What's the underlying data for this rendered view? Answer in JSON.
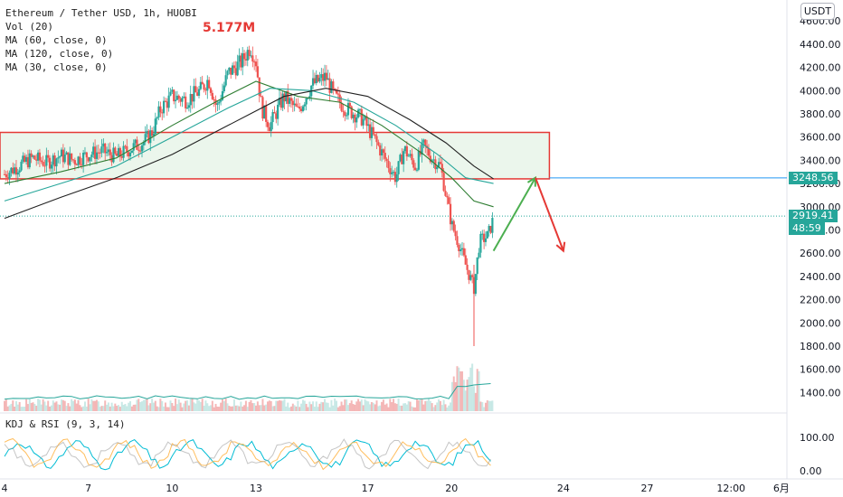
{
  "header": {
    "symbol_line": "Ethereum / Tether USD, 1h, HUOBI",
    "volume_value": "5.177M",
    "indicators": [
      "Vol (20)",
      "MA (60, close, 0)",
      "MA (120, close, 0)",
      "MA (30, close, 0)"
    ],
    "lower_indicator": "KDJ & RSI (9, 3, 14)",
    "currency_badge": "USDT"
  },
  "price_tags": {
    "level": "3248.56",
    "current": "2919.41",
    "countdown": "48:59"
  },
  "colors": {
    "zone_fill": "#e8f5e9",
    "zone_border": "#e53935",
    "level_line": "#2196f3",
    "level_tag": "#26a69a",
    "current_tag": "#26a69a",
    "up_arrow": "#4caf50",
    "down_arrow": "#e53935",
    "candle_up": "#26a69a",
    "candle_down": "#ef5350",
    "ma30": "#2e7d32",
    "ma60": "#26a69a",
    "ma120": "#212121"
  },
  "chart_data": {
    "type": "candlestick",
    "y_axis": {
      "ticks": [
        1400,
        1600,
        1800,
        2000,
        2200,
        2400,
        2600,
        2800,
        3000,
        3200,
        3400,
        3600,
        3800,
        4000,
        4200,
        4400,
        4600
      ],
      "tick_labels": [
        "1400.00",
        "1600.00",
        "1800.00",
        "2000.00",
        "2200.00",
        "2400.00",
        "2600.00",
        "2800.00",
        "3000.00",
        "3200.00",
        "3400.00",
        "3600.00",
        "3800.00",
        "4000.00",
        "4200.00",
        "4400.00",
        "4600.00"
      ],
      "range": [
        1240,
        4780
      ]
    },
    "x_axis": {
      "tick_labels": [
        "4",
        "7",
        "10",
        "13",
        "17",
        "20",
        "24",
        "27",
        "12:00",
        "6月"
      ],
      "range_days": [
        4,
        32
      ]
    },
    "price_path": [
      [
        4.0,
        3280
      ],
      [
        4.5,
        3350
      ],
      [
        5.0,
        3420
      ],
      [
        5.5,
        3380
      ],
      [
        6.0,
        3440
      ],
      [
        6.5,
        3400
      ],
      [
        7.0,
        3450
      ],
      [
        7.5,
        3480
      ],
      [
        8.0,
        3430
      ],
      [
        8.5,
        3500
      ],
      [
        9.0,
        3560
      ],
      [
        9.3,
        3650
      ],
      [
        9.6,
        3850
      ],
      [
        10.0,
        3950
      ],
      [
        10.5,
        3920
      ],
      [
        11.0,
        4000
      ],
      [
        11.3,
        4100
      ],
      [
        11.6,
        3850
      ],
      [
        12.0,
        4150
      ],
      [
        12.5,
        4250
      ],
      [
        12.8,
        4380
      ],
      [
        13.0,
        4250
      ],
      [
        13.2,
        3850
      ],
      [
        13.5,
        3700
      ],
      [
        14.0,
        3950
      ],
      [
        14.5,
        3820
      ],
      [
        15.0,
        4050
      ],
      [
        15.5,
        4120
      ],
      [
        15.8,
        3950
      ],
      [
        16.2,
        3850
      ],
      [
        16.8,
        3760
      ],
      [
        17.2,
        3600
      ],
      [
        17.6,
        3420
      ],
      [
        18.0,
        3250
      ],
      [
        18.3,
        3500
      ],
      [
        18.7,
        3350
      ],
      [
        19.0,
        3520
      ],
      [
        19.3,
        3420
      ],
      [
        19.6,
        3350
      ],
      [
        19.8,
        3100
      ],
      [
        20.0,
        2850
      ],
      [
        20.3,
        2650
      ],
      [
        20.5,
        2500
      ],
      [
        20.8,
        2300
      ],
      [
        21.0,
        2700
      ],
      [
        21.3,
        2750
      ],
      [
        21.5,
        2900
      ]
    ],
    "spikes": {
      "low_wick": 1800,
      "day": 20.8
    },
    "moving_averages": [
      {
        "name": "MA (30, close, 0)",
        "points": [
          [
            4.0,
            3200
          ],
          [
            6.0,
            3300
          ],
          [
            8.0,
            3420
          ],
          [
            10.0,
            3700
          ],
          [
            12.0,
            3960
          ],
          [
            13.0,
            4080
          ],
          [
            14.5,
            3950
          ],
          [
            16.0,
            3900
          ],
          [
            17.5,
            3700
          ],
          [
            19.0,
            3450
          ],
          [
            20.0,
            3250
          ],
          [
            20.8,
            3050
          ],
          [
            21.5,
            3000
          ]
        ]
      },
      {
        "name": "MA (60, close, 0)",
        "points": [
          [
            4.0,
            3050
          ],
          [
            6.0,
            3200
          ],
          [
            8.0,
            3350
          ],
          [
            10.0,
            3600
          ],
          [
            12.0,
            3850
          ],
          [
            13.5,
            4020
          ],
          [
            15.0,
            4000
          ],
          [
            16.5,
            3900
          ],
          [
            18.0,
            3700
          ],
          [
            19.5,
            3450
          ],
          [
            20.5,
            3250
          ],
          [
            21.5,
            3200
          ]
        ]
      },
      {
        "name": "MA (120, close, 0)",
        "points": [
          [
            4.0,
            2900
          ],
          [
            6.0,
            3080
          ],
          [
            8.0,
            3250
          ],
          [
            10.0,
            3450
          ],
          [
            12.0,
            3700
          ],
          [
            14.0,
            3950
          ],
          [
            15.5,
            4020
          ],
          [
            17.0,
            3950
          ],
          [
            18.5,
            3750
          ],
          [
            19.8,
            3550
          ],
          [
            20.8,
            3350
          ],
          [
            21.5,
            3240
          ]
        ]
      }
    ],
    "zone": {
      "top": 3640,
      "bottom": 3240,
      "x_start": 4,
      "x_end": 23.5
    },
    "level_line": 3248.56,
    "current_price": 2919.41,
    "projection_arrows": [
      {
        "from": [
          21.5,
          2620
        ],
        "to": [
          23.0,
          3250
        ]
      },
      {
        "from": [
          23.0,
          3250
        ],
        "to": [
          24.0,
          2620
        ]
      }
    ],
    "kdj_rsi": {
      "y_ticks": [
        0,
        100
      ],
      "tick_labels": [
        "0.00",
        "100.00"
      ]
    }
  }
}
